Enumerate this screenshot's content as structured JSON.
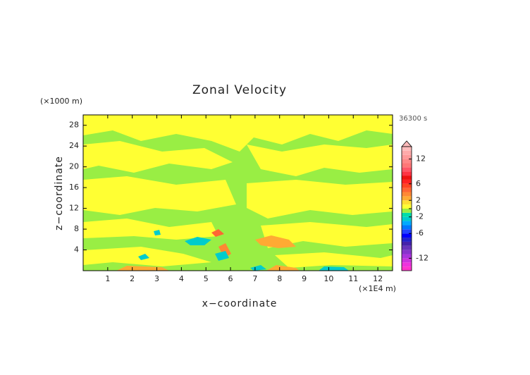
{
  "chart_data": {
    "type": "contour",
    "title": "Zonal Velocity",
    "xlabel": "x−coordinate",
    "ylabel": "z−coordinate",
    "x_unit": "(×1E4 m)",
    "y_unit": "(×1000 m)",
    "time_label": "36300 s",
    "xlim": [
      0,
      12.6
    ],
    "xticks": [
      1,
      2,
      3,
      4,
      5,
      6,
      7,
      8,
      9,
      10,
      11,
      12
    ],
    "ylim": [
      0,
      30
    ],
    "yticks": [
      4,
      8,
      12,
      16,
      20,
      24,
      28
    ],
    "colorbar": {
      "clim": [
        -15,
        15
      ],
      "ticks": [
        12,
        6,
        2,
        0,
        -2,
        -6,
        -12
      ],
      "colors": [
        "#ff33cc",
        "#ee33dd",
        "#cc33dd",
        "#aa33dd",
        "#8833cc",
        "#6633bb",
        "#4422aa",
        "#2222cc",
        "#0000ff",
        "#2244ff",
        "#0077ff",
        "#00aaff",
        "#00cccc",
        "#00ddaa",
        "#99ee44",
        "#ffff33",
        "#ffdd33",
        "#ffaa33",
        "#ff8833",
        "#ff6633",
        "#ff4422",
        "#ff2222",
        "#ee1111",
        "#ff3344",
        "#ff5566",
        "#ff7777",
        "#ff8888",
        "#ff9999",
        "#ffaaaa",
        "#ffbbbb"
      ]
    }
  }
}
